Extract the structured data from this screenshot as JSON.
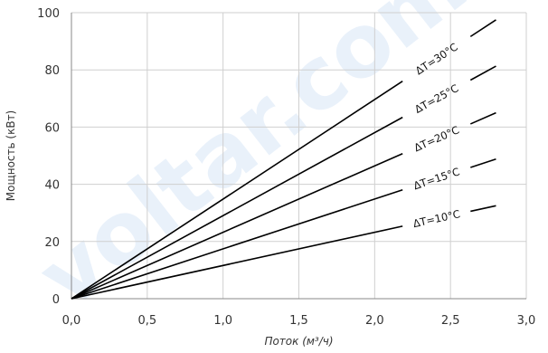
{
  "chart_data": {
    "type": "line",
    "title": "",
    "xlabel": "Поток (м³/ч)",
    "ylabel": "Мощность (кВт)",
    "xlim": [
      0,
      3
    ],
    "ylim": [
      0,
      100
    ],
    "x_ticks": [
      "0,0",
      "0,5",
      "1,0",
      "1,5",
      "2,0",
      "2,5",
      "3,0"
    ],
    "y_ticks": [
      "0",
      "20",
      "40",
      "60",
      "80",
      "100"
    ],
    "grid": true,
    "legend": "inline-labels",
    "line_color": "#000000",
    "series": [
      {
        "name": "ΔT=30°C",
        "x": [
          0,
          2.8
        ],
        "y": [
          0,
          97.5
        ]
      },
      {
        "name": "ΔT=25°C",
        "x": [
          0,
          2.8
        ],
        "y": [
          0,
          81.3
        ]
      },
      {
        "name": "ΔT=20°C",
        "x": [
          0,
          2.8
        ],
        "y": [
          0,
          65.0
        ]
      },
      {
        "name": "ΔT=15°C",
        "x": [
          0,
          2.8
        ],
        "y": [
          0,
          48.8
        ]
      },
      {
        "name": "ΔT=10°C",
        "x": [
          0,
          2.8
        ],
        "y": [
          0,
          32.5
        ]
      }
    ]
  },
  "watermark": "voltar.com.ua"
}
